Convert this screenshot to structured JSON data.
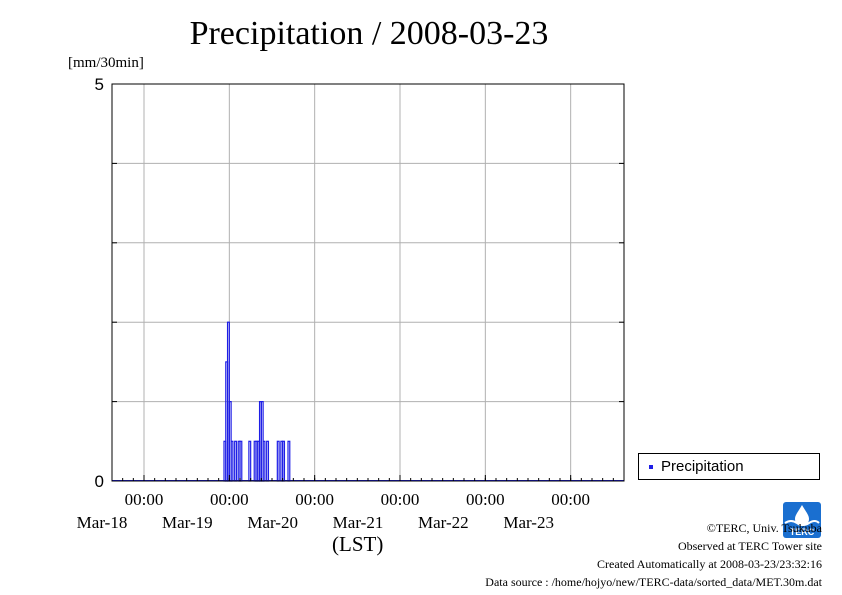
{
  "chart_data": {
    "type": "bar",
    "title": "Precipitation / 2008-03-23",
    "ylabel": "[mm/30min]",
    "xlabel": "(LST)",
    "ylim": [
      0,
      5
    ],
    "y_tick_labels": [
      "0",
      "5"
    ],
    "x_range": [
      "2008-03-17 15:00",
      "2008-03-23 15:00"
    ],
    "x_ticks": [
      {
        "time": "00:00",
        "date": "Mar-18",
        "at": "2008-03-18 00:00"
      },
      {
        "time": "00:00",
        "date": "Mar-19",
        "at": "2008-03-19 00:00"
      },
      {
        "time": "00:00",
        "date": "Mar-20",
        "at": "2008-03-20 00:00"
      },
      {
        "time": "00:00",
        "date": "Mar-21",
        "at": "2008-03-21 00:00"
      },
      {
        "time": "00:00",
        "date": "Mar-22",
        "at": "2008-03-22 00:00"
      },
      {
        "time": "00:00",
        "date": "Mar-23",
        "at": "2008-03-23 00:00"
      }
    ],
    "grid": true,
    "legend_position": "right",
    "series": [
      {
        "name": "Precipitation",
        "color": "#1e1ee6",
        "points": [
          [
            "2008-03-18 23:00",
            0.5
          ],
          [
            "2008-03-18 23:30",
            1.5
          ],
          [
            "2008-03-19 00:00",
            2.0
          ],
          [
            "2008-03-19 00:30",
            1.0
          ],
          [
            "2008-03-19 01:00",
            0.5
          ],
          [
            "2008-03-19 02:00",
            0.5
          ],
          [
            "2008-03-19 03:00",
            0.5
          ],
          [
            "2008-03-19 03:30",
            0.5
          ],
          [
            "2008-03-19 06:00",
            0.5
          ],
          [
            "2008-03-19 07:30",
            0.5
          ],
          [
            "2008-03-19 08:00",
            0.5
          ],
          [
            "2008-03-19 08:30",
            0.5
          ],
          [
            "2008-03-19 09:00",
            1.0
          ],
          [
            "2008-03-19 09:30",
            1.0
          ],
          [
            "2008-03-19 10:00",
            0.5
          ],
          [
            "2008-03-19 11:00",
            0.5
          ],
          [
            "2008-03-19 14:00",
            0.5
          ],
          [
            "2008-03-19 15:00",
            0.5
          ],
          [
            "2008-03-19 15:30",
            0.5
          ],
          [
            "2008-03-19 17:00",
            0.5
          ]
        ]
      }
    ]
  },
  "legend": {
    "label": "Precipitation"
  },
  "footer": {
    "copyright": "©TERC, Univ. Tsukuba",
    "observed": "Observed at TERC Tower site",
    "created": "Created Automatically at 2008-03-23/23:32:16",
    "source": "Data source : /home/hojyo/new/TERC-data/sorted_data/MET.30m.dat"
  },
  "logo": {
    "text": "TERC"
  }
}
